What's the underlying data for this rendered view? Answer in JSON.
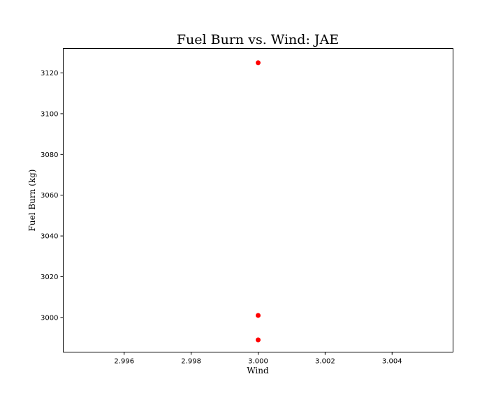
{
  "chart_data": {
    "type": "scatter",
    "title": "Fuel Burn vs. Wind: JAE",
    "xlabel": "Wind",
    "ylabel": "Fuel Burn (kg)",
    "xlim": [
      2.99418,
      3.00582
    ],
    "ylim": [
      2983.0,
      3132.0
    ],
    "xticks": [
      2.996,
      2.998,
      3.0,
      3.002,
      3.004
    ],
    "xtick_labels": [
      "2.996",
      "2.998",
      "3.000",
      "3.002",
      "3.004"
    ],
    "yticks": [
      3000,
      3020,
      3040,
      3060,
      3080,
      3100,
      3120
    ],
    "ytick_labels": [
      "3000",
      "3020",
      "3040",
      "3060",
      "3080",
      "3100",
      "3120"
    ],
    "grid": false,
    "marker_color": "#ff0000",
    "points": [
      {
        "x": 3.0,
        "y": 3125
      },
      {
        "x": 3.0,
        "y": 3001
      },
      {
        "x": 3.0,
        "y": 2989
      }
    ]
  }
}
